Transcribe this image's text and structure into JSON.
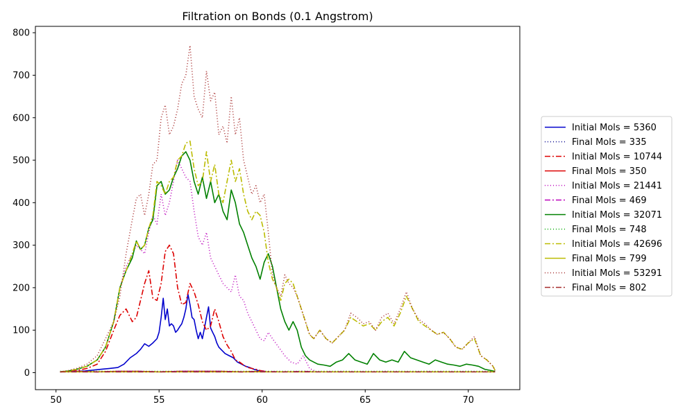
{
  "chart_data": {
    "type": "line",
    "title": "Filtration on Bonds (0.1 Angstrom)",
    "xlabel": "",
    "ylabel": "",
    "xlim": [
      49.0,
      72.5
    ],
    "ylim": [
      -40,
      815
    ],
    "xticks": [
      50,
      55,
      60,
      65,
      70
    ],
    "yticks": [
      0,
      100,
      200,
      300,
      400,
      500,
      600,
      700,
      800
    ],
    "legend_position": "right",
    "grid": false,
    "series": [
      {
        "name": "Initial Mols = 5360",
        "color": "#0000cc",
        "dash": "solid",
        "x": [
          50.2,
          50.6,
          51.0,
          51.4,
          51.8,
          52.2,
          52.6,
          53.0,
          53.3,
          53.6,
          53.9,
          54.1,
          54.3,
          54.5,
          54.7,
          54.9,
          55.0,
          55.1,
          55.2,
          55.3,
          55.4,
          55.5,
          55.6,
          55.7,
          55.8,
          55.9,
          56.0,
          56.1,
          56.2,
          56.3,
          56.4,
          56.5,
          56.6,
          56.7,
          56.8,
          56.9,
          57.0,
          57.1,
          57.2,
          57.3,
          57.4,
          57.5,
          57.6,
          57.7,
          57.8,
          57.9,
          58.0,
          58.2,
          58.4,
          58.6,
          58.8,
          59.0,
          59.2,
          59.4,
          59.6,
          59.8,
          60.0
        ],
        "y": [
          2,
          3,
          3,
          4,
          6,
          8,
          10,
          12,
          20,
          35,
          45,
          55,
          68,
          62,
          70,
          80,
          95,
          130,
          175,
          125,
          150,
          110,
          115,
          110,
          95,
          100,
          108,
          115,
          130,
          150,
          185,
          160,
          130,
          125,
          100,
          80,
          95,
          80,
          105,
          130,
          155,
          105,
          95,
          85,
          70,
          60,
          55,
          45,
          40,
          35,
          25,
          20,
          15,
          12,
          8,
          5,
          3
        ]
      },
      {
        "name": "Final Mols = 335",
        "color": "#00008b",
        "dash": "1,3",
        "x": [
          50.2,
          51.0,
          52.0,
          53.0,
          54.0,
          55.0,
          56.0,
          57.0,
          58.0,
          59.0,
          60.0,
          61.0,
          62.0,
          63.0,
          64.0,
          65.0,
          66.0,
          67.0,
          68.0,
          69.0,
          70.0,
          71.0,
          71.3
        ],
        "y": [
          2,
          3,
          2,
          3,
          3,
          2,
          3,
          3,
          3,
          2,
          3,
          2,
          3,
          2,
          3,
          2,
          3,
          2,
          3,
          2,
          3,
          2,
          2
        ]
      },
      {
        "name": "Initial Mols = 10744",
        "color": "#dd0000",
        "dash": "8,3,2,3",
        "x": [
          50.2,
          50.6,
          51.0,
          51.5,
          52.0,
          52.4,
          52.8,
          53.1,
          53.4,
          53.7,
          53.9,
          54.1,
          54.3,
          54.5,
          54.7,
          54.9,
          55.1,
          55.3,
          55.5,
          55.7,
          55.9,
          56.1,
          56.3,
          56.5,
          56.7,
          56.9,
          57.1,
          57.3,
          57.5,
          57.7,
          57.9,
          58.1,
          58.3,
          58.5,
          58.7,
          58.9,
          59.1,
          59.3,
          59.5,
          59.7,
          59.9,
          60.2
        ],
        "y": [
          2,
          3,
          5,
          10,
          20,
          50,
          100,
          135,
          150,
          120,
          130,
          170,
          210,
          240,
          175,
          170,
          210,
          285,
          300,
          280,
          200,
          160,
          165,
          210,
          190,
          160,
          120,
          100,
          110,
          150,
          120,
          85,
          65,
          50,
          30,
          25,
          18,
          12,
          10,
          8,
          5,
          3
        ]
      },
      {
        "name": "Final Mols = 350",
        "color": "#dd0000",
        "dash": "solid",
        "x": [
          50.2,
          51.0,
          52.0,
          53.0,
          54.0,
          55.0,
          56.0,
          57.0,
          58.0,
          59.0,
          60.0,
          60.2
        ],
        "y": [
          2,
          3,
          2,
          3,
          3,
          2,
          3,
          3,
          3,
          2,
          3,
          2
        ]
      },
      {
        "name": "Initial Mols = 21441",
        "color": "#bb00bb",
        "dash": "1,3",
        "x": [
          50.2,
          50.6,
          51.0,
          51.5,
          52.0,
          52.4,
          52.8,
          53.1,
          53.4,
          53.7,
          53.9,
          54.1,
          54.3,
          54.5,
          54.7,
          54.9,
          55.1,
          55.3,
          55.5,
          55.7,
          55.9,
          56.1,
          56.3,
          56.5,
          56.7,
          56.9,
          57.1,
          57.3,
          57.5,
          57.7,
          57.9,
          58.1,
          58.3,
          58.5,
          58.7,
          58.9,
          59.1,
          59.3,
          59.5,
          59.7,
          59.9,
          60.1,
          60.3,
          60.5,
          60.8,
          61.1,
          61.4,
          61.7,
          62.0,
          62.3,
          62.6
        ],
        "y": [
          2,
          4,
          8,
          15,
          30,
          60,
          120,
          200,
          250,
          280,
          300,
          290,
          280,
          330,
          370,
          350,
          420,
          370,
          400,
          450,
          500,
          480,
          460,
          450,
          380,
          320,
          300,
          330,
          270,
          250,
          230,
          210,
          200,
          190,
          230,
          180,
          170,
          140,
          120,
          100,
          80,
          75,
          95,
          80,
          60,
          40,
          25,
          20,
          40,
          10,
          3
        ]
      },
      {
        "name": "Final Mols = 469",
        "color": "#bb00bb",
        "dash": "8,3,2,3",
        "x": [
          50.2,
          51.0,
          52.0,
          53.0,
          54.0,
          55.0,
          56.0,
          57.0,
          58.0,
          59.0,
          60.0,
          61.0,
          62.0,
          62.6
        ],
        "y": [
          2,
          3,
          2,
          3,
          3,
          2,
          3,
          3,
          3,
          2,
          3,
          2,
          3,
          2
        ]
      },
      {
        "name": "Initial Mols = 32071",
        "color": "#008000",
        "dash": "solid",
        "x": [
          50.2,
          50.6,
          51.0,
          51.5,
          52.0,
          52.4,
          52.8,
          53.1,
          53.4,
          53.7,
          53.9,
          54.1,
          54.3,
          54.5,
          54.7,
          54.9,
          55.1,
          55.3,
          55.5,
          55.7,
          55.9,
          56.1,
          56.3,
          56.5,
          56.7,
          56.9,
          57.1,
          57.3,
          57.5,
          57.7,
          57.9,
          58.1,
          58.3,
          58.5,
          58.7,
          58.9,
          59.1,
          59.3,
          59.5,
          59.7,
          59.9,
          60.1,
          60.3,
          60.5,
          60.7,
          60.9,
          61.1,
          61.3,
          61.5,
          61.7,
          61.9,
          62.1,
          62.3,
          62.5,
          62.7,
          63.0,
          63.3,
          63.6,
          63.9,
          64.2,
          64.5,
          64.8,
          65.1,
          65.4,
          65.7,
          66.0,
          66.3,
          66.6,
          66.9,
          67.2,
          67.5,
          67.8,
          68.1,
          68.4,
          68.7,
          69.0,
          69.3,
          69.6,
          69.9,
          70.2,
          70.5,
          70.8,
          71.1,
          71.3
        ],
        "y": [
          2,
          4,
          8,
          15,
          30,
          60,
          120,
          200,
          240,
          270,
          310,
          290,
          300,
          340,
          360,
          440,
          450,
          420,
          430,
          460,
          480,
          510,
          520,
          500,
          450,
          420,
          460,
          410,
          450,
          400,
          420,
          380,
          360,
          430,
          400,
          350,
          330,
          300,
          270,
          250,
          220,
          260,
          280,
          250,
          200,
          150,
          120,
          100,
          120,
          100,
          60,
          40,
          30,
          25,
          20,
          18,
          15,
          25,
          30,
          45,
          30,
          25,
          20,
          45,
          30,
          25,
          30,
          25,
          50,
          35,
          30,
          25,
          20,
          30,
          25,
          20,
          18,
          15,
          20,
          18,
          15,
          8,
          5,
          3
        ]
      },
      {
        "name": "Final Mols = 748",
        "color": "#00aa00",
        "dash": "1,3",
        "x": [
          50.2,
          52.0,
          54.0,
          56.0,
          58.0,
          60.0,
          62.0,
          64.0,
          66.0,
          68.0,
          70.0,
          71.3
        ],
        "y": [
          3,
          3,
          3,
          3,
          3,
          3,
          3,
          3,
          3,
          3,
          3,
          3
        ]
      },
      {
        "name": "Initial Mols = 42696",
        "color": "#bbbb00",
        "dash": "8,3,2,3",
        "x": [
          50.2,
          50.6,
          51.0,
          51.5,
          52.0,
          52.4,
          52.8,
          53.1,
          53.4,
          53.7,
          53.9,
          54.1,
          54.3,
          54.5,
          54.7,
          54.9,
          55.1,
          55.3,
          55.5,
          55.7,
          55.9,
          56.1,
          56.3,
          56.5,
          56.7,
          56.9,
          57.1,
          57.3,
          57.5,
          57.7,
          57.9,
          58.1,
          58.3,
          58.5,
          58.7,
          58.9,
          59.1,
          59.3,
          59.5,
          59.7,
          59.9,
          60.1,
          60.3,
          60.5,
          60.7,
          60.9,
          61.1,
          61.3,
          61.5,
          61.7,
          61.9,
          62.1,
          62.3,
          62.5,
          62.8,
          63.1,
          63.4,
          63.7,
          64.0,
          64.3,
          64.6,
          64.9,
          65.2,
          65.5,
          65.8,
          66.1,
          66.4,
          66.7,
          67.0,
          67.3,
          67.6,
          67.9,
          68.2,
          68.5,
          68.8,
          69.1,
          69.4,
          69.7,
          70.0,
          70.3,
          70.6,
          70.9,
          71.2,
          71.3
        ],
        "y": [
          2,
          4,
          8,
          15,
          30,
          60,
          120,
          200,
          240,
          280,
          310,
          290,
          300,
          340,
          370,
          450,
          440,
          420,
          450,
          460,
          500,
          510,
          540,
          545,
          480,
          440,
          450,
          520,
          450,
          490,
          420,
          400,
          450,
          500,
          450,
          480,
          420,
          380,
          360,
          380,
          370,
          330,
          260,
          220,
          200,
          170,
          210,
          220,
          210,
          180,
          150,
          120,
          90,
          80,
          100,
          80,
          70,
          85,
          100,
          130,
          120,
          110,
          115,
          100,
          120,
          130,
          110,
          140,
          180,
          150,
          120,
          110,
          100,
          90,
          95,
          80,
          60,
          55,
          70,
          80,
          40,
          30,
          15,
          5
        ]
      },
      {
        "name": "Final Mols = 799",
        "color": "#bbbb00",
        "dash": "solid",
        "x": [
          50.2,
          52.0,
          54.0,
          56.0,
          58.0,
          60.0,
          62.0,
          64.0,
          66.0,
          68.0,
          70.0,
          71.3
        ],
        "y": [
          2,
          2,
          2,
          2,
          2,
          2,
          2,
          2,
          2,
          2,
          2,
          2
        ]
      },
      {
        "name": "Initial Mols = 53291",
        "color": "#a52a2a",
        "dash": "1,3",
        "x": [
          50.2,
          50.6,
          51.0,
          51.5,
          52.0,
          52.4,
          52.8,
          53.1,
          53.4,
          53.7,
          53.9,
          54.1,
          54.3,
          54.5,
          54.7,
          54.9,
          55.1,
          55.3,
          55.5,
          55.7,
          55.9,
          56.1,
          56.3,
          56.5,
          56.7,
          56.9,
          57.1,
          57.3,
          57.5,
          57.7,
          57.9,
          58.1,
          58.3,
          58.5,
          58.7,
          58.9,
          59.1,
          59.3,
          59.5,
          59.7,
          59.9,
          60.1,
          60.3,
          60.5,
          60.7,
          60.9,
          61.1,
          61.3,
          61.5,
          61.7,
          61.9,
          62.1,
          62.3,
          62.5,
          62.8,
          63.1,
          63.4,
          63.7,
          64.0,
          64.3,
          64.6,
          64.9,
          65.2,
          65.5,
          65.8,
          66.1,
          66.4,
          66.7,
          67.0,
          67.3,
          67.6,
          67.9,
          68.2,
          68.5,
          68.8,
          69.1,
          69.4,
          69.7,
          70.0,
          70.3,
          70.6,
          70.9,
          71.2,
          71.3
        ],
        "y": [
          2,
          5,
          10,
          20,
          40,
          80,
          120,
          180,
          280,
          360,
          410,
          420,
          370,
          420,
          490,
          500,
          600,
          630,
          560,
          580,
          620,
          680,
          700,
          770,
          650,
          620,
          600,
          710,
          640,
          660,
          560,
          580,
          540,
          650,
          560,
          600,
          500,
          460,
          420,
          440,
          400,
          420,
          330,
          230,
          200,
          180,
          230,
          210,
          200,
          180,
          150,
          120,
          90,
          80,
          100,
          80,
          70,
          85,
          100,
          140,
          130,
          115,
          120,
          100,
          130,
          140,
          115,
          150,
          190,
          150,
          125,
          115,
          100,
          90,
          95,
          80,
          60,
          55,
          70,
          85,
          40,
          30,
          15,
          5
        ]
      },
      {
        "name": "Final Mols = 802",
        "color": "#a52a2a",
        "dash": "8,3,2,3",
        "x": [
          50.2,
          52.0,
          54.0,
          56.0,
          58.0,
          60.0,
          62.0,
          64.0,
          66.0,
          68.0,
          70.0,
          71.3
        ],
        "y": [
          2,
          2,
          2,
          2,
          2,
          2,
          2,
          2,
          2,
          2,
          2,
          2
        ]
      }
    ]
  }
}
